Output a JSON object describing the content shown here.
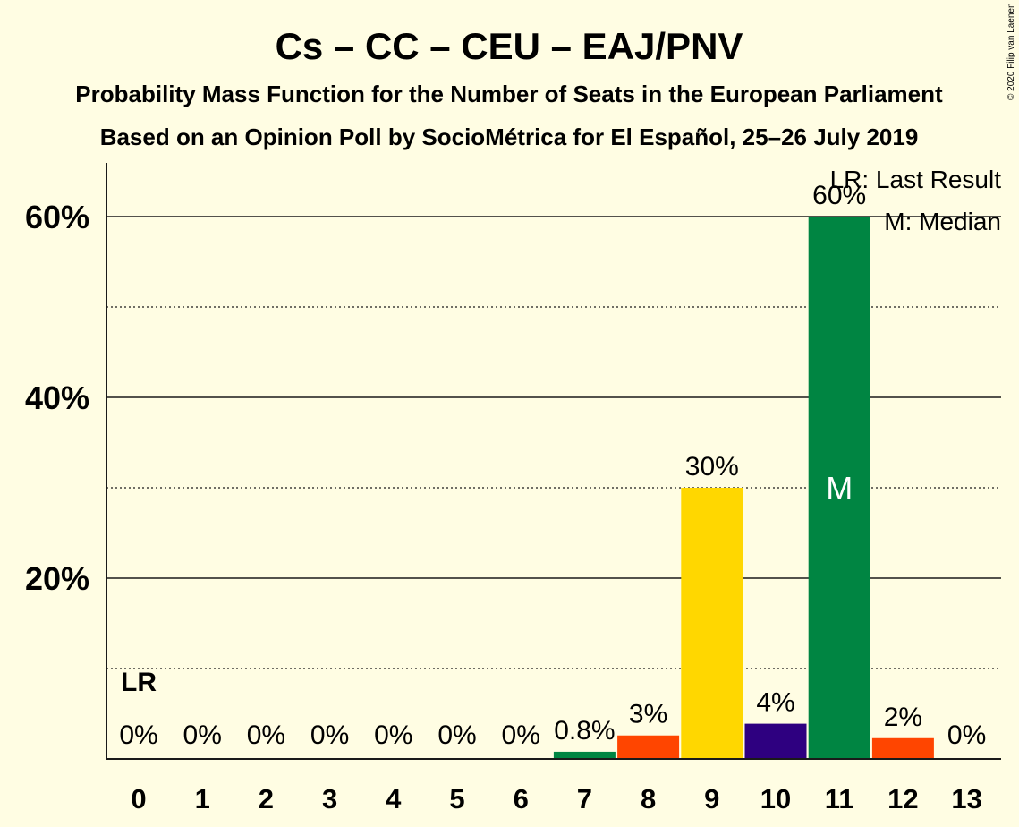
{
  "chart_data": {
    "type": "bar",
    "title": "Cs – CC – CEU – EAJ/PNV",
    "subtitle": "Probability Mass Function for the Number of Seats in the European Parliament",
    "subtitle2": "Based on an Opinion Poll by SocioMétrica for El Español, 25–26 July 2019",
    "copyright": "© 2020 Filip van Laenen",
    "categories": [
      "0",
      "1",
      "2",
      "3",
      "4",
      "5",
      "6",
      "7",
      "8",
      "9",
      "10",
      "11",
      "12",
      "13"
    ],
    "values": [
      0,
      0,
      0,
      0,
      0,
      0,
      0,
      0.8,
      2.6,
      30,
      3.9,
      60,
      2.3,
      0
    ],
    "labels": [
      "0%",
      "0%",
      "0%",
      "0%",
      "0%",
      "0%",
      "0%",
      "0.8%",
      "3%",
      "30%",
      "4%",
      "60%",
      "2%",
      "0%"
    ],
    "bar_colors": [
      "#008542",
      "#008542",
      "#008542",
      "#008542",
      "#008542",
      "#008542",
      "#008542",
      "#008542",
      "#FF4500",
      "#FFD700",
      "#2E0080",
      "#008542",
      "#FF4500",
      "#008542"
    ],
    "ylim": [
      0,
      65.5
    ],
    "yticks": [
      20,
      40,
      60
    ],
    "ytick_labels": [
      "20%",
      "40%",
      "60%"
    ],
    "ygrid_dotted": [
      10,
      30,
      50
    ],
    "last_result_index": 0,
    "last_result_label": "LR",
    "median_index": 11,
    "median_label": "M",
    "legend": [
      "LR: Last Result",
      "M: Median"
    ],
    "legend_position": "top-right"
  }
}
